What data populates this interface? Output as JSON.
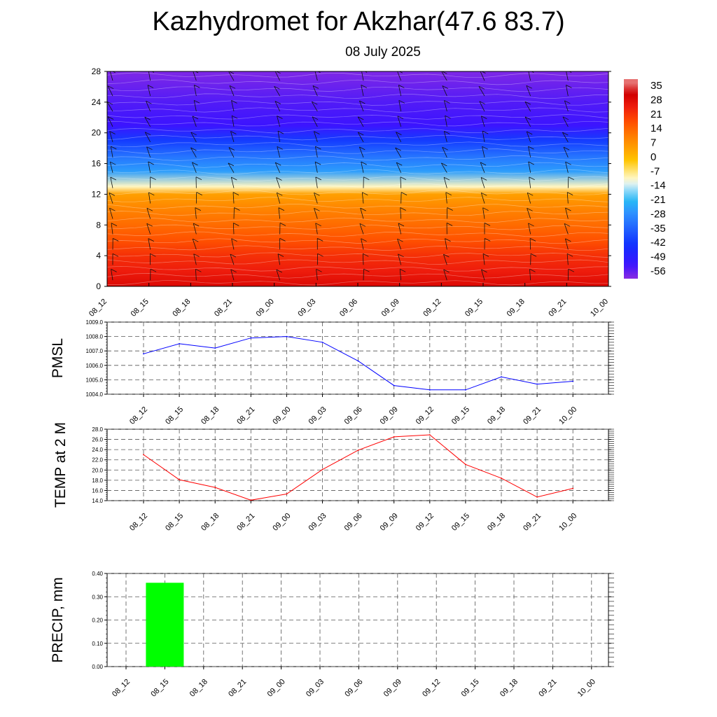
{
  "title": "Kazhydromet for Akzhar(47.6 83.7)",
  "subtitle": "08 July 2025",
  "colors": {
    "pmsl_line": "#0000ff",
    "temp_line": "#ff0000",
    "precip_bar": "#00ff00",
    "grid": "#555555"
  },
  "time_labels": [
    "08_12",
    "08_15",
    "08_18",
    "08_21",
    "09_00",
    "09_03",
    "09_06",
    "09_09",
    "09_12",
    "09_15",
    "09_18",
    "09_21",
    "10_00"
  ],
  "chart_data": [
    {
      "type": "heatmap",
      "title": "",
      "x": [
        "08_12",
        "08_15",
        "08_18",
        "08_21",
        "09_00",
        "09_03",
        "09_06",
        "09_09",
        "09_12",
        "09_15",
        "09_18",
        "09_21",
        "10_00"
      ],
      "yticks": [
        0,
        4,
        8,
        12,
        16,
        20,
        24,
        28
      ],
      "ylim": [
        0,
        28
      ],
      "colorbar_ticks": [
        35,
        28,
        21,
        14,
        7,
        0,
        -7,
        -14,
        -21,
        -28,
        -35,
        -42,
        -49,
        -56
      ],
      "colorbar_range": [
        -63,
        38
      ],
      "temperature_profile": [
        {
          "level": 0,
          "value": 28
        },
        {
          "level": 2,
          "value": 24
        },
        {
          "level": 4,
          "value": 21
        },
        {
          "level": 6,
          "value": 16
        },
        {
          "level": 8,
          "value": 12
        },
        {
          "level": 10,
          "value": 8
        },
        {
          "level": 12,
          "value": 3
        },
        {
          "level": 13,
          "value": -12
        },
        {
          "level": 15,
          "value": -28
        },
        {
          "level": 17,
          "value": -35
        },
        {
          "level": 19,
          "value": -44
        },
        {
          "level": 21,
          "value": -56
        },
        {
          "level": 24,
          "value": -58
        },
        {
          "level": 28,
          "value": -62
        }
      ],
      "wind_barbs": true
    },
    {
      "type": "line",
      "ylabel": "PMSL",
      "x": [
        "08_12",
        "08_15",
        "08_18",
        "08_21",
        "09_00",
        "09_03",
        "09_06",
        "09_09",
        "09_12",
        "09_15",
        "09_18",
        "09_21",
        "10_00"
      ],
      "series": [
        {
          "values": [
            1006.8,
            1007.5,
            1007.2,
            1007.9,
            1008.0,
            1007.6,
            1006.3,
            1004.6,
            1004.3,
            1004.3,
            1005.2,
            1004.7,
            1004.9
          ]
        }
      ],
      "yticks": [
        "1004.0",
        "1005.0",
        "1006.0",
        "1007.0",
        "1008.0",
        "1009.0"
      ],
      "ylim": [
        1004.0,
        1009.0
      ],
      "grid": true
    },
    {
      "type": "line",
      "ylabel": "TEMP at 2 M",
      "x": [
        "08_12",
        "08_15",
        "08_18",
        "08_21",
        "09_00",
        "09_03",
        "09_06",
        "09_09",
        "09_12",
        "09_15",
        "09_18",
        "09_21",
        "10_00"
      ],
      "series": [
        {
          "values": [
            23.0,
            18.1,
            16.6,
            14.1,
            15.3,
            20.1,
            23.9,
            26.5,
            26.9,
            21.1,
            18.4,
            14.7,
            16.4
          ]
        }
      ],
      "yticks": [
        "14.0",
        "16.0",
        "18.0",
        "20.0",
        "22.0",
        "24.0",
        "26.0",
        "28.0"
      ],
      "ylim": [
        14.0,
        28.0
      ],
      "grid": true
    },
    {
      "type": "bar",
      "ylabel": "PRECIP, mm",
      "categories": [
        "08_12",
        "08_15",
        "08_18",
        "08_21",
        "09_00",
        "09_03",
        "09_06",
        "09_09",
        "09_12",
        "09_15",
        "09_18",
        "09_21",
        "10_00"
      ],
      "values": [
        0,
        0.36,
        0,
        0,
        0,
        0,
        0,
        0,
        0,
        0,
        0,
        0,
        0
      ],
      "yticks": [
        "0.00",
        "0.10",
        "0.20",
        "0.30",
        "0.40"
      ],
      "ylim": [
        0,
        0.4
      ],
      "grid": true
    }
  ]
}
